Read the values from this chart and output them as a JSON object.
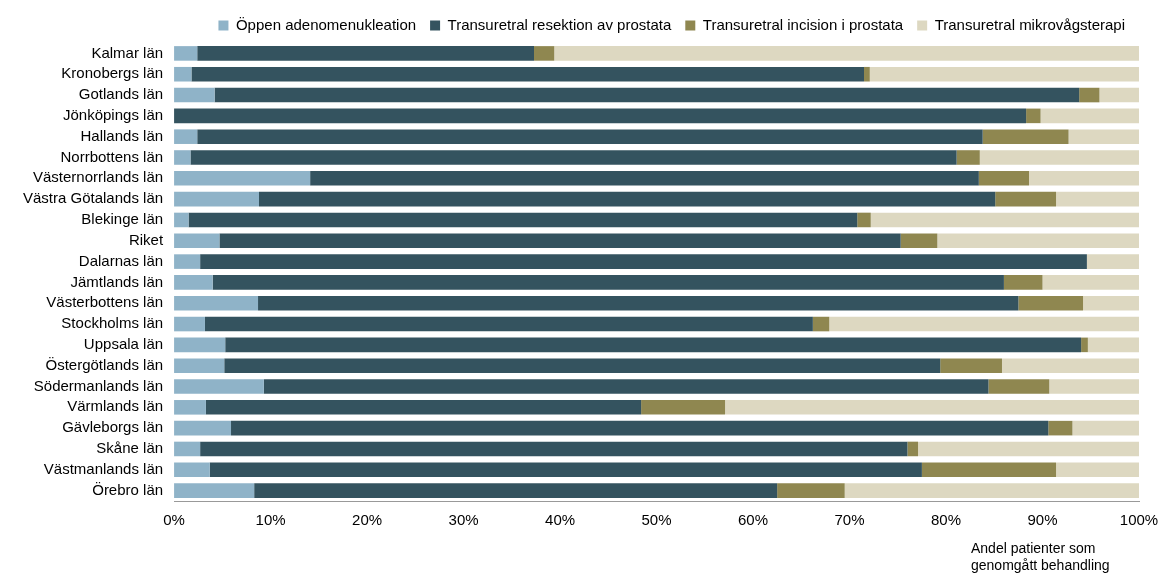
{
  "chart_data": {
    "type": "bar",
    "orientation": "horizontal",
    "stacked": true,
    "xlabel": "Andel patienter som genomgått behandling",
    "legend": "top right",
    "grid": false,
    "categories": [
      "Kalmar län",
      "Kronobergs län",
      "Gotlands län",
      "Jönköpings län",
      "Hallands län",
      "Norrbottens län",
      "Västernorrlands län",
      "Västra Götalands län",
      "Blekinge län",
      "Riket",
      "Dalarnas län",
      "Jämtlands län",
      "Västerbottens län",
      "Stockholms län",
      "Uppsala län",
      "Östergötlands län",
      "Södermanlands län",
      "Värmlands län",
      "Gävleborgs län",
      "Skåne län",
      "Västmanlands län",
      "Örebro län"
    ],
    "xlim": [
      0,
      100
    ],
    "xticks": [
      {
        "value": 0,
        "label": "0%"
      },
      {
        "value": 10,
        "label": "10%"
      },
      {
        "value": 20,
        "label": "20%"
      },
      {
        "value": 30,
        "label": "30%"
      },
      {
        "value": 40,
        "label": "40%"
      },
      {
        "value": 50,
        "label": "50%"
      },
      {
        "value": 60,
        "label": "60%"
      },
      {
        "value": 70,
        "label": "70%"
      },
      {
        "value": 80,
        "label": "80%"
      },
      {
        "value": 90,
        "label": "90%"
      },
      {
        "value": 100,
        "label": "100%"
      }
    ],
    "series": [
      {
        "name": "Öppen adenomenukleation",
        "color": "#8fb3c8",
        "values": [
          2.4,
          1.8,
          4.2,
          0,
          2.4,
          1.7,
          14.1,
          8.8,
          1.5,
          4.7,
          2.7,
          4.0,
          8.7,
          3.2,
          5.3,
          5.2,
          9.3,
          3.3,
          5.9,
          2.7,
          3.7,
          8.3
        ]
      },
      {
        "name": "Transuretral resektion av prostata",
        "color": "#34535f",
        "values": [
          34.9,
          69.7,
          89.6,
          88.3,
          81.4,
          79.4,
          69.3,
          76.3,
          69.3,
          70.6,
          91.9,
          82.0,
          78.8,
          63.0,
          88.7,
          74.2,
          75.1,
          45.1,
          84.7,
          73.3,
          73.8,
          54.2
        ]
      },
      {
        "name": "Transuretral incision i prostata",
        "color": "#8f8750",
        "values": [
          2.1,
          0.6,
          2.1,
          1.5,
          8.9,
          2.4,
          5.2,
          6.3,
          1.4,
          3.8,
          0,
          4.0,
          6.7,
          1.7,
          0.7,
          6.4,
          6.3,
          8.7,
          2.5,
          1.1,
          13.9,
          7.0
        ]
      },
      {
        "name": "Transuretral mikrovågsterapi",
        "color": "#ddd8c1",
        "values": [
          60.6,
          27.9,
          4.1,
          10.2,
          7.3,
          16.5,
          11.4,
          8.6,
          27.8,
          20.9,
          5.4,
          10.0,
          5.8,
          32.1,
          5.3,
          14.2,
          9.3,
          42.9,
          6.9,
          22.9,
          8.6,
          30.5
        ]
      }
    ]
  }
}
